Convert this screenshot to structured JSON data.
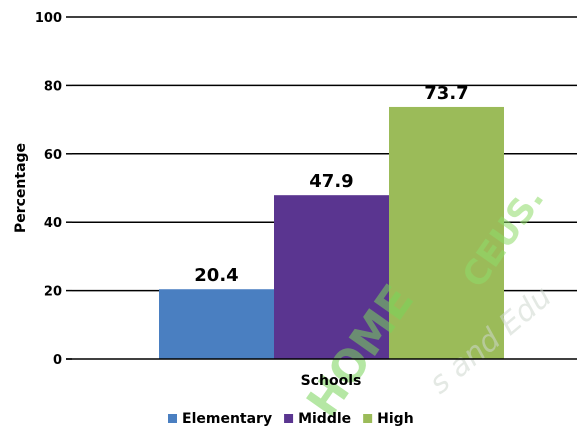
{
  "chart_data": {
    "type": "bar",
    "xlabel": "Schools",
    "ylabel": "Percentage",
    "ylim": [
      0,
      100
    ],
    "yticks": [
      0,
      20,
      40,
      60,
      80,
      100
    ],
    "grid": true,
    "legend_position": "bottom",
    "categories": [
      ""
    ],
    "series": [
      {
        "name": "Elementary",
        "values": [
          20.4
        ],
        "label": "20.4",
        "color": "#4a7fc1"
      },
      {
        "name": "Middle",
        "values": [
          47.9
        ],
        "label": "47.9",
        "color": "#5a3590"
      },
      {
        "name": "High",
        "values": [
          73.7
        ],
        "label": "73.7",
        "color": "#9bbb59"
      }
    ]
  },
  "watermark": {
    "main": "HOME",
    "secondary": "CEUS.",
    "tagline": "s and Edu",
    "colors": [
      "#7ad55a",
      "#cfe8c0"
    ]
  }
}
